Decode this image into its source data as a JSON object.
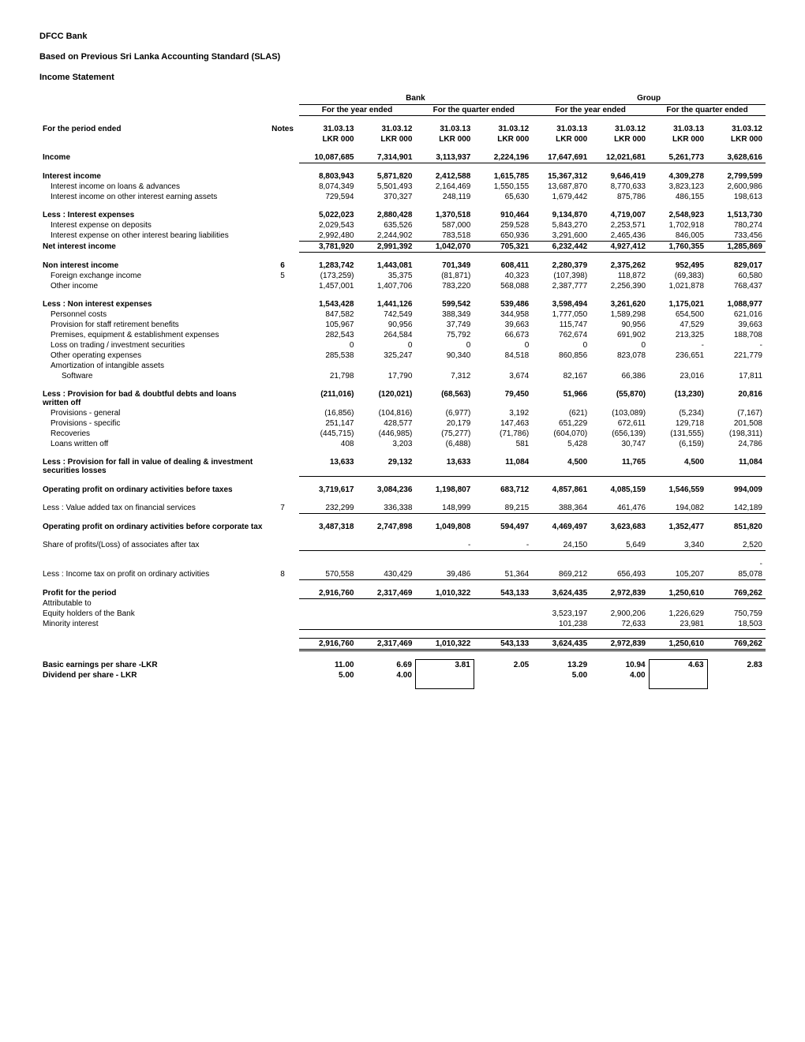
{
  "header": {
    "company": "DFCC Bank",
    "basis": "Based on Previous Sri Lanka Accounting Standard (SLAS)",
    "statement": "Income Statement"
  },
  "group_headers": {
    "bank": "Bank",
    "group": "Group",
    "year": "For the year ended",
    "quarter": "For the quarter ended"
  },
  "period_label": "For the period ended",
  "notes_label": "Notes",
  "columns": {
    "d1": "31.03.13",
    "d2": "31.03.12",
    "d3": "31.03.13",
    "d4": "31.03.12",
    "d5": "31.03.13",
    "d6": "31.03.12",
    "d7": "31.03.13",
    "d8": "31.03.12",
    "unit": "LKR 000"
  },
  "rows": {
    "income": {
      "label": "Income",
      "v": [
        "10,087,685",
        "7,314,901",
        "3,113,937",
        "2,224,196",
        "17,647,691",
        "12,021,681",
        "5,261,773",
        "3,628,616"
      ]
    },
    "interest_income": {
      "label": "Interest income",
      "v": [
        "8,803,943",
        "5,871,820",
        "2,412,588",
        "1,615,785",
        "15,367,312",
        "9,646,419",
        "4,309,278",
        "2,799,599"
      ]
    },
    "ii_loans": {
      "label": "Interest income on loans & advances",
      "v": [
        "8,074,349",
        "5,501,493",
        "2,164,469",
        "1,550,155",
        "13,687,870",
        "8,770,633",
        "3,823,123",
        "2,600,986"
      ]
    },
    "ii_other": {
      "label": "Interest income on other interest earning assets",
      "v": [
        "729,594",
        "370,327",
        "248,119",
        "65,630",
        "1,679,442",
        "875,786",
        "486,155",
        "198,613"
      ]
    },
    "less_ie": {
      "label": "Less : Interest expenses",
      "v": [
        "5,022,023",
        "2,880,428",
        "1,370,518",
        "910,464",
        "9,134,870",
        "4,719,007",
        "2,548,923",
        "1,513,730"
      ]
    },
    "ie_deposits": {
      "label": "Interest expense on deposits",
      "v": [
        "2,029,543",
        "635,526",
        "587,000",
        "259,528",
        "5,843,270",
        "2,253,571",
        "1,702,918",
        "780,274"
      ]
    },
    "ie_other": {
      "label": "Interest expense on other interest bearing liabilities",
      "v": [
        "2,992,480",
        "2,244,902",
        "783,518",
        "650,936",
        "3,291,600",
        "2,465,436",
        "846,005",
        "733,456"
      ]
    },
    "net_ii": {
      "label": "Net interest income",
      "v": [
        "3,781,920",
        "2,991,392",
        "1,042,070",
        "705,321",
        "6,232,442",
        "4,927,412",
        "1,760,355",
        "1,285,869"
      ]
    },
    "non_ii": {
      "label": "Non interest income",
      "note": "6",
      "v": [
        "1,283,742",
        "1,443,081",
        "701,349",
        "608,411",
        "2,280,379",
        "2,375,262",
        "952,495",
        "829,017"
      ]
    },
    "fx": {
      "label": "Foreign exchange income",
      "note": "5",
      "v": [
        "(173,259)",
        "35,375",
        "(81,871)",
        "40,323",
        "(107,398)",
        "118,872",
        "(69,383)",
        "60,580"
      ]
    },
    "other_inc": {
      "label": "Other income",
      "v": [
        "1,457,001",
        "1,407,706",
        "783,220",
        "568,088",
        "2,387,777",
        "2,256,390",
        "1,021,878",
        "768,437"
      ]
    },
    "less_nie": {
      "label": "Less : Non interest expenses",
      "v": [
        "1,543,428",
        "1,441,126",
        "599,542",
        "539,486",
        "3,598,494",
        "3,261,620",
        "1,175,021",
        "1,088,977"
      ]
    },
    "personnel": {
      "label": "Personnel costs",
      "v": [
        "847,582",
        "742,549",
        "388,349",
        "344,958",
        "1,777,050",
        "1,589,298",
        "654,500",
        "621,016"
      ]
    },
    "retirement": {
      "label": "Provision for staff retirement benefits",
      "v": [
        "105,967",
        "90,956",
        "37,749",
        "39,663",
        "115,747",
        "90,956",
        "47,529",
        "39,663"
      ]
    },
    "premises": {
      "label": "Premises, equipment & establishment expenses",
      "v": [
        "282,543",
        "264,584",
        "75,792",
        "66,673",
        "762,674",
        "691,902",
        "213,325",
        "188,708"
      ]
    },
    "loss_trading": {
      "label": "Loss on trading / investment securities",
      "v": [
        "0",
        "0",
        "0",
        "0",
        "0",
        "0",
        "-",
        "-"
      ]
    },
    "other_op": {
      "label": "Other operating expenses",
      "v": [
        "285,538",
        "325,247",
        "90,340",
        "84,518",
        "860,856",
        "823,078",
        "236,651",
        "221,779"
      ]
    },
    "amort": {
      "label": "Amortization of intangible assets",
      "v": [
        "",
        "",
        "",
        "",
        "",
        "",
        "",
        ""
      ]
    },
    "software": {
      "label": "Software",
      "v": [
        "21,798",
        "17,790",
        "7,312",
        "3,674",
        "82,167",
        "66,386",
        "23,016",
        "17,811"
      ]
    },
    "prov_bad": {
      "label": "Less : Provision for bad & doubtful debts and loans written off",
      "v": [
        "(211,016)",
        "(120,021)",
        "(68,563)",
        "79,450",
        "51,966",
        "(55,870)",
        "(13,230)",
        "20,816"
      ]
    },
    "prov_gen": {
      "label": "Provisions - general",
      "v": [
        "(16,856)",
        "(104,816)",
        "(6,977)",
        "3,192",
        "(621)",
        "(103,089)",
        "(5,234)",
        "(7,167)"
      ]
    },
    "prov_spec": {
      "label": "Provisions - specific",
      "v": [
        "251,147",
        "428,577",
        "20,179",
        "147,463",
        "651,229",
        "672,611",
        "129,718",
        "201,508"
      ]
    },
    "recoveries": {
      "label": "Recoveries",
      "v": [
        "(445,715)",
        "(446,985)",
        "(75,277)",
        "(71,786)",
        "(604,070)",
        "(656,139)",
        "(131,555)",
        "(198,311)"
      ]
    },
    "loans_wo": {
      "label": "Loans written off",
      "v": [
        "408",
        "3,203",
        "(6,488)",
        "581",
        "5,428",
        "30,747",
        "(6,159)",
        "24,786"
      ]
    },
    "prov_fall": {
      "label": "Less : Provision for fall in value of  dealing & investment securities losses",
      "v": [
        "13,633",
        "29,132",
        "13,633",
        "11,084",
        "4,500",
        "11,765",
        "4,500",
        "11,084"
      ]
    },
    "op_profit_before_tax": {
      "label": "Operating profit on ordinary activities before taxes",
      "v": [
        "3,719,617",
        "3,084,236",
        "1,198,807",
        "683,712",
        "4,857,861",
        "4,085,159",
        "1,546,559",
        "994,009"
      ]
    },
    "vat": {
      "label": "Less : Value added tax on financial services",
      "note": "7",
      "v": [
        "232,299",
        "336,338",
        "148,999",
        "89,215",
        "388,364",
        "461,476",
        "194,082",
        "142,189"
      ]
    },
    "op_profit_before_corptax": {
      "label": "Operating profit on ordinary activities before corporate tax",
      "v": [
        "3,487,318",
        "2,747,898",
        "1,049,808",
        "594,497",
        "4,469,497",
        "3,623,683",
        "1,352,477",
        "851,820"
      ]
    },
    "share_assoc": {
      "label": "Share of profits/(Loss) of associates after tax",
      "v": [
        "",
        "",
        "-",
        "-",
        "24,150",
        "5,649",
        "3,340",
        "2,520"
      ]
    },
    "blank_dash": {
      "label": "",
      "v": [
        "",
        "",
        "",
        "",
        "",
        "",
        "",
        "-"
      ]
    },
    "income_tax": {
      "label": "Less : Income tax on profit on ordinary activities",
      "note": "8",
      "v": [
        "570,558",
        "430,429",
        "39,486",
        "51,364",
        "869,212",
        "656,493",
        "105,207",
        "85,078"
      ]
    },
    "profit": {
      "label": "Profit for the period",
      "v": [
        "2,916,760",
        "2,317,469",
        "1,010,322",
        "543,133",
        "3,624,435",
        "2,972,839",
        "1,250,610",
        "769,262"
      ]
    },
    "attrib": {
      "label": "Attributable to",
      "v": [
        "",
        "",
        "",
        "",
        "",
        "",
        "",
        ""
      ]
    },
    "equity_holders": {
      "label": "Equity holders of the Bank",
      "v": [
        "",
        "",
        "",
        "",
        "3,523,197",
        "2,900,206",
        "1,226,629",
        "750,759"
      ]
    },
    "minority": {
      "label": "Minority interest",
      "v": [
        "",
        "",
        "",
        "",
        "101,238",
        "72,633",
        "23,981",
        "18,503"
      ]
    },
    "total_attrib": {
      "label": "",
      "v": [
        "2,916,760",
        "2,317,469",
        "1,010,322",
        "543,133",
        "3,624,435",
        "2,972,839",
        "1,250,610",
        "769,262"
      ]
    },
    "eps": {
      "label": "Basic earnings per share -LKR",
      "v": [
        "11.00",
        "6.69",
        "3.81",
        "2.05",
        "13.29",
        "10.94",
        "4.63",
        "2.83"
      ]
    },
    "dividend": {
      "label": "Dividend per share - LKR",
      "v": [
        "5.00",
        "4.00",
        "",
        "",
        "5.00",
        "4.00",
        "",
        ""
      ]
    }
  }
}
